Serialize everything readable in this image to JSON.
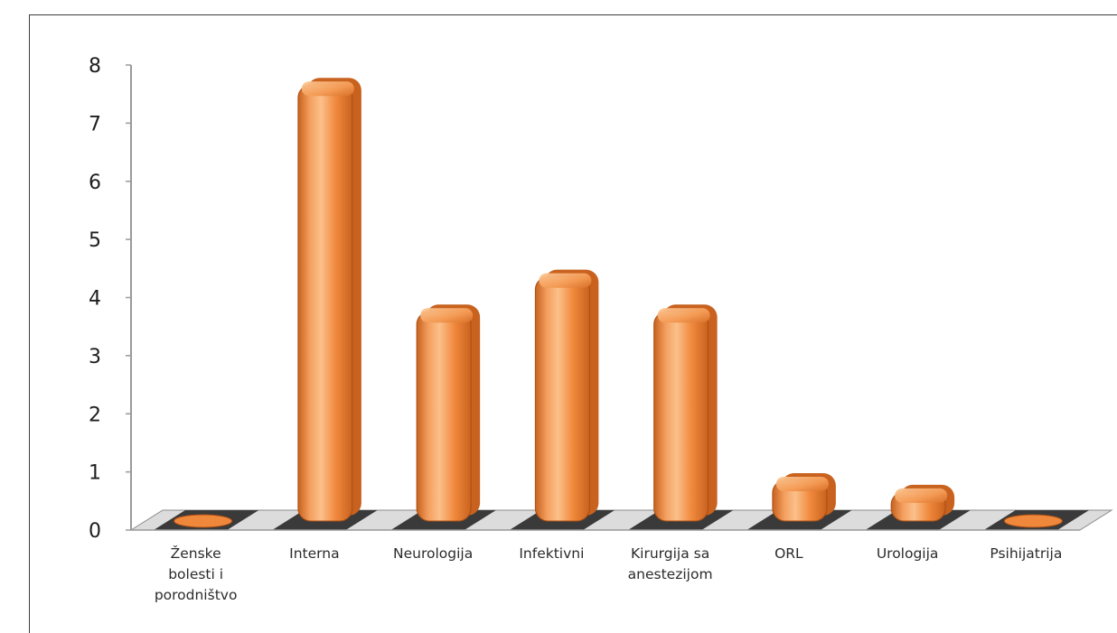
{
  "chart_data": {
    "type": "bar",
    "style": "3d-cylinder",
    "categories": [
      [
        "Ženske",
        "bolesti i",
        "porodništvo"
      ],
      [
        "Interna"
      ],
      [
        "Neurologija"
      ],
      [
        "Infektivni"
      ],
      [
        "Kirurgija sa",
        "anestezijom"
      ],
      [
        "ORL"
      ],
      [
        "Urologija"
      ],
      [
        "Psihijatrija"
      ]
    ],
    "values": [
      0,
      7.5,
      3.6,
      4.2,
      3.6,
      0.7,
      0.5,
      0
    ],
    "yticks": [
      "0",
      "1",
      "2",
      "3",
      "4",
      "5",
      "6",
      "7",
      "8"
    ],
    "ylim": [
      0,
      8
    ],
    "grid": false,
    "legend": "none",
    "colors": {
      "bar": "#f0883c",
      "bar_light": "#fbc08a",
      "bar_dark": "#c8621e",
      "bar_edge": "#a84e14",
      "floor_dark": "#3a3a3a",
      "floor_light": "#e8e8e8",
      "axis": "#9a9a9a"
    }
  }
}
